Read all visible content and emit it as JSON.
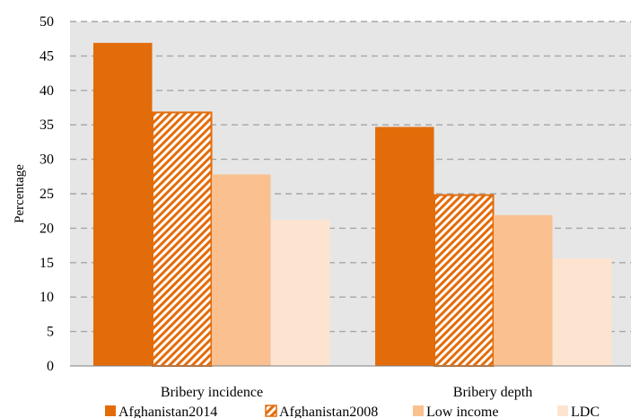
{
  "chart_data": {
    "type": "bar",
    "categories": [
      "Bribery incidence",
      "Bribery depth"
    ],
    "series": [
      {
        "name": "Afghanistan2014",
        "values": [
          46.9,
          34.7
        ],
        "color": "#E36C0A",
        "pattern": "solid"
      },
      {
        "name": "Afghanistan2008",
        "values": [
          36.8,
          24.8
        ],
        "color": "#E36C0A",
        "pattern": "diagonal-stripes"
      },
      {
        "name": "Low income",
        "values": [
          27.8,
          21.9
        ],
        "color": "#FAC090",
        "pattern": "solid"
      },
      {
        "name": "LDC",
        "values": [
          21.2,
          15.6
        ],
        "color": "#FDE4D0",
        "pattern": "solid"
      }
    ],
    "ylabel": "Percentage",
    "ylim": [
      0,
      50
    ],
    "yticks": [
      "0",
      "5",
      "10",
      "15",
      "20",
      "25",
      "30",
      "35",
      "40",
      "45",
      "50"
    ],
    "grid": true,
    "legend_position": "bottom",
    "plot_background": "#E6E6E6"
  }
}
